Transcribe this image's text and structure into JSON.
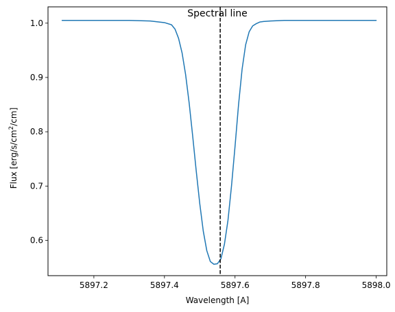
{
  "chart_data": {
    "type": "line",
    "title": "Spectral line",
    "xlabel": "Wavelength [A]",
    "ylabel_parts": [
      "Flux [erg/s/cm",
      "2",
      "/cm]"
    ],
    "xlim": [
      5897.07,
      5898.03
    ],
    "ylim": [
      0.535,
      1.03
    ],
    "xticks": [
      {
        "value": 5897.2,
        "label": "5897.2"
      },
      {
        "value": 5897.4,
        "label": "5897.4"
      },
      {
        "value": 5897.6,
        "label": "5897.6"
      },
      {
        "value": 5897.8,
        "label": "5897.8"
      },
      {
        "value": 5898.0,
        "label": "5898.0"
      }
    ],
    "yticks": [
      {
        "value": 0.6,
        "label": "0.6"
      },
      {
        "value": 0.7,
        "label": "0.7"
      },
      {
        "value": 0.8,
        "label": "0.8"
      },
      {
        "value": 0.9,
        "label": "0.9"
      },
      {
        "value": 1.0,
        "label": "1.0"
      }
    ],
    "grid": false,
    "reference_line": {
      "x": 5897.558,
      "style": "dashed",
      "color": "#000000"
    },
    "series": [
      {
        "color": "#1f77b4",
        "x": [
          5897.11,
          5897.2,
          5897.3,
          5897.36,
          5897.4,
          5897.42,
          5897.43,
          5897.44,
          5897.45,
          5897.46,
          5897.47,
          5897.48,
          5897.49,
          5897.5,
          5897.51,
          5897.52,
          5897.53,
          5897.54,
          5897.55,
          5897.56,
          5897.57,
          5897.58,
          5897.59,
          5897.6,
          5897.61,
          5897.62,
          5897.63,
          5897.64,
          5897.65,
          5897.66,
          5897.67,
          5897.68,
          5897.7,
          5897.74,
          5897.8,
          5897.9,
          5898.0
        ],
        "y": [
          1.005,
          1.005,
          1.005,
          1.004,
          1.001,
          0.997,
          0.989,
          0.972,
          0.945,
          0.905,
          0.853,
          0.792,
          0.728,
          0.668,
          0.617,
          0.581,
          0.561,
          0.556,
          0.557,
          0.566,
          0.593,
          0.637,
          0.7,
          0.773,
          0.85,
          0.915,
          0.96,
          0.984,
          0.995,
          0.999,
          1.002,
          1.003,
          1.004,
          1.005,
          1.005,
          1.005,
          1.005
        ]
      }
    ]
  }
}
